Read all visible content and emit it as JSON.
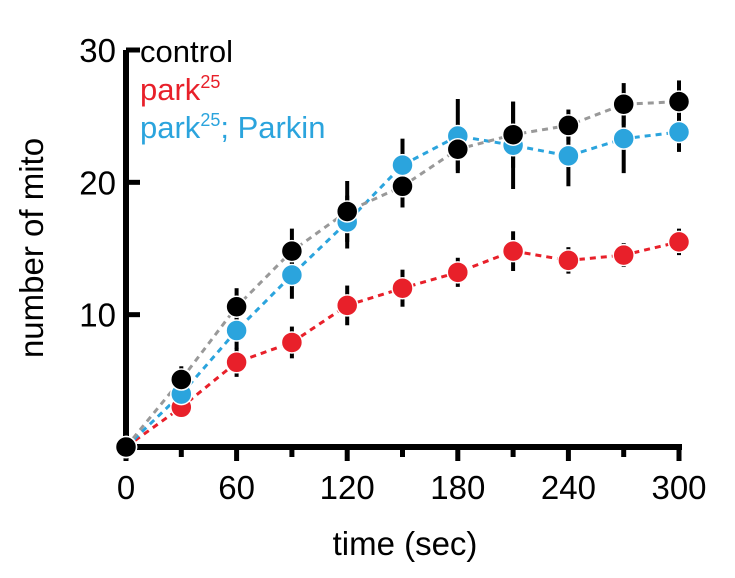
{
  "chart_data": {
    "type": "scatter",
    "xlabel": "time (sec)",
    "ylabel": "number of mito",
    "xlim": [
      0,
      300
    ],
    "ylim": [
      0,
      30
    ],
    "xticks": [
      0,
      60,
      120,
      180,
      240,
      300
    ],
    "xtick_labels": [
      "0",
      "60",
      "120",
      "180",
      "240",
      "300"
    ],
    "xticks_minor": [
      30,
      90,
      150,
      210,
      270
    ],
    "yticks": [
      10,
      20,
      30
    ],
    "ytick_labels": [
      "10",
      "20",
      "30"
    ],
    "legend_position": "top-left",
    "grid": false,
    "series": [
      {
        "name": "control",
        "color": "#000000",
        "line_color": "#999999",
        "x": [
          0,
          30,
          60,
          90,
          120,
          150,
          180,
          210,
          240,
          270,
          300
        ],
        "y": [
          0,
          5.1,
          10.6,
          14.8,
          17.8,
          19.7,
          22.5,
          23.6,
          24.3,
          25.9,
          26.1
        ],
        "err": [
          0,
          1.0,
          1.4,
          1.7,
          2.3,
          1.6,
          1.6,
          2.5,
          1.2,
          1.6,
          1.6
        ]
      },
      {
        "name": "park",
        "name_sup": "25",
        "color": "#E8202A",
        "line_color": "#E8202A",
        "x": [
          0,
          30,
          60,
          90,
          120,
          150,
          180,
          210,
          240,
          270,
          300
        ],
        "y": [
          0,
          3.0,
          6.4,
          7.9,
          10.7,
          12.0,
          13.2,
          14.8,
          14.1,
          14.5,
          15.5
        ],
        "err": [
          0,
          0.6,
          1.1,
          1.2,
          1.5,
          1.4,
          1.1,
          1.5,
          1.0,
          0.9,
          1.0
        ]
      },
      {
        "name": "park",
        "name_sup": "25",
        "name_rest": "; Parkin",
        "color": "#2BA4DD",
        "line_color": "#2BA4DD",
        "x": [
          0,
          30,
          60,
          90,
          120,
          150,
          180,
          210,
          240,
          270,
          300
        ],
        "y": [
          0,
          4.0,
          8.8,
          13.0,
          17.0,
          21.3,
          23.5,
          22.8,
          22.0,
          23.3,
          23.8
        ],
        "err": [
          0,
          0.9,
          1.4,
          1.8,
          2.0,
          2.0,
          2.8,
          3.3,
          2.3,
          2.6,
          1.5
        ]
      }
    ]
  }
}
